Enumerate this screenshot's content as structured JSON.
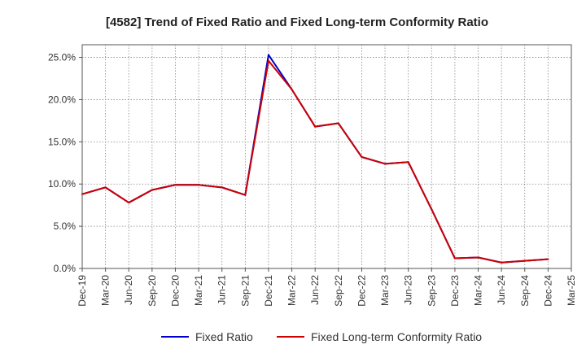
{
  "chart_data": {
    "type": "line",
    "title": "[4582]  Trend of Fixed Ratio and Fixed Long-term Conformity Ratio",
    "xlabel": "",
    "ylabel": "",
    "categories": [
      "Dec-19",
      "Mar-20",
      "Jun-20",
      "Sep-20",
      "Dec-20",
      "Mar-21",
      "Jun-21",
      "Sep-21",
      "Dec-21",
      "Mar-22",
      "Jun-22",
      "Sep-22",
      "Dec-22",
      "Mar-23",
      "Jun-23",
      "Sep-23",
      "Dec-23",
      "Mar-24",
      "Jun-24",
      "Sep-24",
      "Dec-24",
      "Mar-25"
    ],
    "yticks": [
      0,
      5,
      10,
      15,
      20,
      25
    ],
    "ytick_labels": [
      "0.0%",
      "5.0%",
      "10.0%",
      "15.0%",
      "20.0%",
      "25.0%"
    ],
    "ylim": [
      0,
      26.5
    ],
    "grid": true,
    "legend": "bottom",
    "series": [
      {
        "name": "Fixed Ratio",
        "color": "#0000cc",
        "values": [
          8.8,
          9.6,
          7.8,
          9.3,
          9.9,
          9.9,
          9.6,
          8.7,
          25.3,
          21.2,
          16.8,
          17.2,
          13.2,
          12.4,
          12.6,
          7.0,
          1.2,
          1.3,
          0.7,
          0.9,
          1.1,
          null
        ]
      },
      {
        "name": "Fixed Long-term Conformity Ratio",
        "color": "#cc0000",
        "values": [
          8.8,
          9.6,
          7.8,
          9.3,
          9.9,
          9.9,
          9.6,
          8.7,
          24.6,
          21.2,
          16.8,
          17.2,
          13.2,
          12.4,
          12.6,
          7.0,
          1.2,
          1.3,
          0.7,
          0.9,
          1.1,
          null
        ]
      }
    ]
  }
}
